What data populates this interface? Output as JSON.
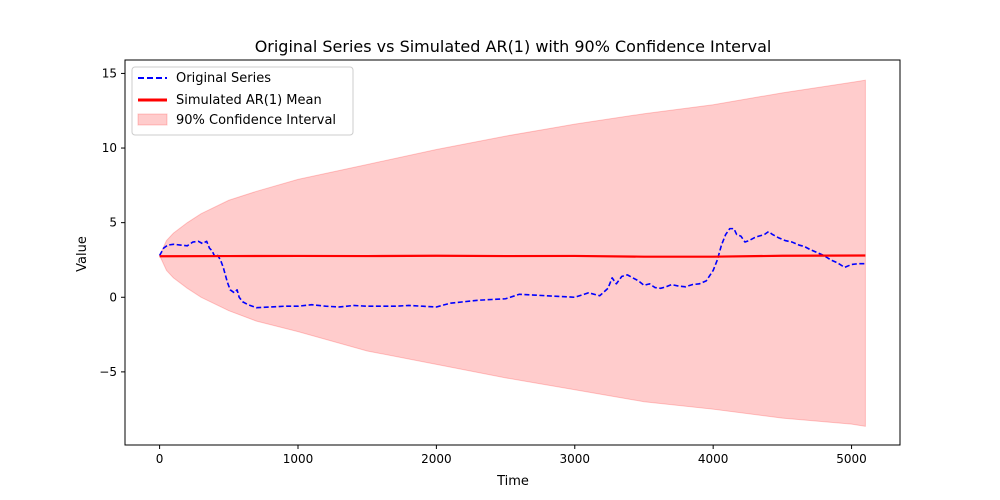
{
  "chart_data": {
    "type": "line",
    "title": "Original Series vs Simulated AR(1) with 90% Confidence Interval",
    "xlabel": "Time",
    "ylabel": "Value",
    "xlim": [
      -250,
      5350
    ],
    "ylim": [
      -9.9,
      15.9
    ],
    "xticks": [
      0,
      1000,
      2000,
      3000,
      4000,
      5000
    ],
    "yticks": [
      -5,
      0,
      5,
      10,
      15
    ],
    "ytick_labels": [
      "−5",
      "0",
      "5",
      "10",
      "15"
    ],
    "grid": false,
    "legend_position": "top-left",
    "series": [
      {
        "name": "Original Series",
        "kind": "line",
        "style": "dashed",
        "color": "#0000ff",
        "points": [
          [
            0,
            2.8
          ],
          [
            30,
            3.3
          ],
          [
            60,
            3.5
          ],
          [
            100,
            3.55
          ],
          [
            150,
            3.5
          ],
          [
            200,
            3.45
          ],
          [
            240,
            3.7
          ],
          [
            280,
            3.75
          ],
          [
            310,
            3.6
          ],
          [
            340,
            3.75
          ],
          [
            360,
            3.3
          ],
          [
            380,
            3.1
          ],
          [
            400,
            2.7
          ],
          [
            420,
            2.8
          ],
          [
            440,
            2.5
          ],
          [
            460,
            2.0
          ],
          [
            490,
            1.0
          ],
          [
            510,
            0.5
          ],
          [
            540,
            0.3
          ],
          [
            560,
            0.5
          ],
          [
            575,
            0.0
          ],
          [
            600,
            -0.3
          ],
          [
            640,
            -0.5
          ],
          [
            700,
            -0.7
          ],
          [
            800,
            -0.65
          ],
          [
            900,
            -0.6
          ],
          [
            1000,
            -0.6
          ],
          [
            1100,
            -0.5
          ],
          [
            1200,
            -0.6
          ],
          [
            1300,
            -0.65
          ],
          [
            1400,
            -0.55
          ],
          [
            1500,
            -0.6
          ],
          [
            1600,
            -0.6
          ],
          [
            1700,
            -0.6
          ],
          [
            1800,
            -0.55
          ],
          [
            1900,
            -0.6
          ],
          [
            2000,
            -0.65
          ],
          [
            2100,
            -0.4
          ],
          [
            2200,
            -0.3
          ],
          [
            2300,
            -0.2
          ],
          [
            2400,
            -0.15
          ],
          [
            2500,
            -0.1
          ],
          [
            2600,
            0.2
          ],
          [
            2700,
            0.15
          ],
          [
            2800,
            0.1
          ],
          [
            2900,
            0.05
          ],
          [
            3000,
            0.0
          ],
          [
            3100,
            0.3
          ],
          [
            3180,
            0.1
          ],
          [
            3240,
            0.6
          ],
          [
            3270,
            1.3
          ],
          [
            3300,
            0.9
          ],
          [
            3340,
            1.4
          ],
          [
            3380,
            1.5
          ],
          [
            3420,
            1.3
          ],
          [
            3460,
            1.1
          ],
          [
            3500,
            0.8
          ],
          [
            3540,
            0.9
          ],
          [
            3580,
            0.65
          ],
          [
            3620,
            0.6
          ],
          [
            3660,
            0.7
          ],
          [
            3700,
            0.85
          ],
          [
            3750,
            0.75
          ],
          [
            3800,
            0.7
          ],
          [
            3850,
            0.85
          ],
          [
            3900,
            0.9
          ],
          [
            3950,
            1.1
          ],
          [
            4000,
            1.8
          ],
          [
            4030,
            2.5
          ],
          [
            4060,
            3.5
          ],
          [
            4090,
            4.2
          ],
          [
            4120,
            4.6
          ],
          [
            4150,
            4.6
          ],
          [
            4170,
            4.2
          ],
          [
            4200,
            4.1
          ],
          [
            4230,
            3.7
          ],
          [
            4260,
            3.8
          ],
          [
            4300,
            4.0
          ],
          [
            4330,
            4.1
          ],
          [
            4370,
            4.2
          ],
          [
            4400,
            4.4
          ],
          [
            4430,
            4.2
          ],
          [
            4470,
            4.0
          ],
          [
            4520,
            3.8
          ],
          [
            4570,
            3.7
          ],
          [
            4620,
            3.5
          ],
          [
            4660,
            3.4
          ],
          [
            4700,
            3.2
          ],
          [
            4750,
            3.0
          ],
          [
            4800,
            2.8
          ],
          [
            4850,
            2.5
          ],
          [
            4900,
            2.3
          ],
          [
            4950,
            2.0
          ],
          [
            5000,
            2.2
          ],
          [
            5050,
            2.25
          ],
          [
            5100,
            2.25
          ]
        ]
      },
      {
        "name": "Simulated AR(1) Mean",
        "kind": "line",
        "style": "solid",
        "color": "#ff0000",
        "points": [
          [
            0,
            2.75
          ],
          [
            500,
            2.76
          ],
          [
            1000,
            2.77
          ],
          [
            1500,
            2.76
          ],
          [
            2000,
            2.78
          ],
          [
            2500,
            2.76
          ],
          [
            3000,
            2.77
          ],
          [
            3500,
            2.72
          ],
          [
            4000,
            2.72
          ],
          [
            4500,
            2.78
          ],
          [
            5100,
            2.8
          ]
        ]
      },
      {
        "name": "90% Confidence Interval",
        "kind": "band",
        "color": "#ff0000",
        "opacity": 0.2,
        "x": [
          0,
          50,
          100,
          200,
          300,
          500,
          700,
          1000,
          1500,
          2000,
          2500,
          3000,
          3500,
          4000,
          4500,
          5000,
          5100
        ],
        "upper": [
          2.8,
          3.8,
          4.3,
          5.0,
          5.6,
          6.5,
          7.1,
          7.9,
          8.9,
          9.9,
          10.8,
          11.6,
          12.3,
          12.9,
          13.7,
          14.4,
          14.55
        ],
        "lower": [
          2.8,
          1.8,
          1.3,
          0.6,
          0.0,
          -0.9,
          -1.6,
          -2.3,
          -3.6,
          -4.5,
          -5.4,
          -6.2,
          -7.0,
          -7.5,
          -8.1,
          -8.5,
          -8.65
        ]
      }
    ]
  }
}
